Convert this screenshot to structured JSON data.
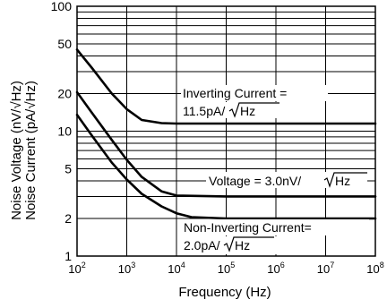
{
  "chart_data": {
    "type": "line",
    "xscale": "log",
    "yscale": "log",
    "xlim": [
      100,
      100000000
    ],
    "ylim": [
      1,
      100
    ],
    "xlabel": "Frequency (Hz)",
    "ylabel_lines": [
      "Noise Voltage (nV/√Hz)",
      "Noise Current (pA/√Hz)"
    ],
    "grid": true,
    "x_ticks": [
      {
        "base": "10",
        "exp": "2"
      },
      {
        "base": "10",
        "exp": "3"
      },
      {
        "base": "10",
        "exp": "4"
      },
      {
        "base": "10",
        "exp": "5"
      },
      {
        "base": "10",
        "exp": "6"
      },
      {
        "base": "10",
        "exp": "7"
      },
      {
        "base": "10",
        "exp": "8"
      }
    ],
    "y_ticks": [
      1,
      2,
      5,
      10,
      20,
      50,
      100
    ],
    "y_tick_labels": [
      "1",
      "2",
      "5",
      "10",
      "20",
      "50",
      "100"
    ],
    "series": [
      {
        "x": [
          100,
          200,
          500,
          1000,
          2000,
          5000,
          10000,
          100000,
          1000000,
          10000000,
          100000000
        ],
        "y": [
          45,
          32,
          20,
          15,
          12.3,
          11.6,
          11.5,
          11.5,
          11.5,
          11.5,
          11.5
        ]
      },
      {
        "x": [
          100,
          200,
          500,
          1000,
          2000,
          5000,
          10000,
          100000,
          1000000,
          10000000,
          100000000
        ],
        "y": [
          20.5,
          14,
          8.5,
          5.9,
          4.3,
          3.3,
          3.05,
          3.0,
          3.0,
          3.0,
          3.0
        ]
      },
      {
        "x": [
          100,
          200,
          500,
          1000,
          2000,
          5000,
          10000,
          20000,
          100000,
          1000000,
          10000000,
          100000000
        ],
        "y": [
          13.5,
          9.2,
          5.6,
          4.1,
          3.15,
          2.5,
          2.2,
          2.05,
          2.0,
          2.0,
          2.0,
          2.0
        ]
      }
    ],
    "annotations": {
      "inverting_current": {
        "line1": "Inverting Current =",
        "line2_prefix": "11.5pA/",
        "line2_radicand": "Hz"
      },
      "voltage": {
        "prefix": "Voltage = 3.0nV/",
        "radicand": "Hz"
      },
      "noninverting_current": {
        "line1": "Non-Inverting Current=",
        "line2_prefix": "2.0pA/",
        "line2_radicand": "Hz"
      }
    }
  }
}
